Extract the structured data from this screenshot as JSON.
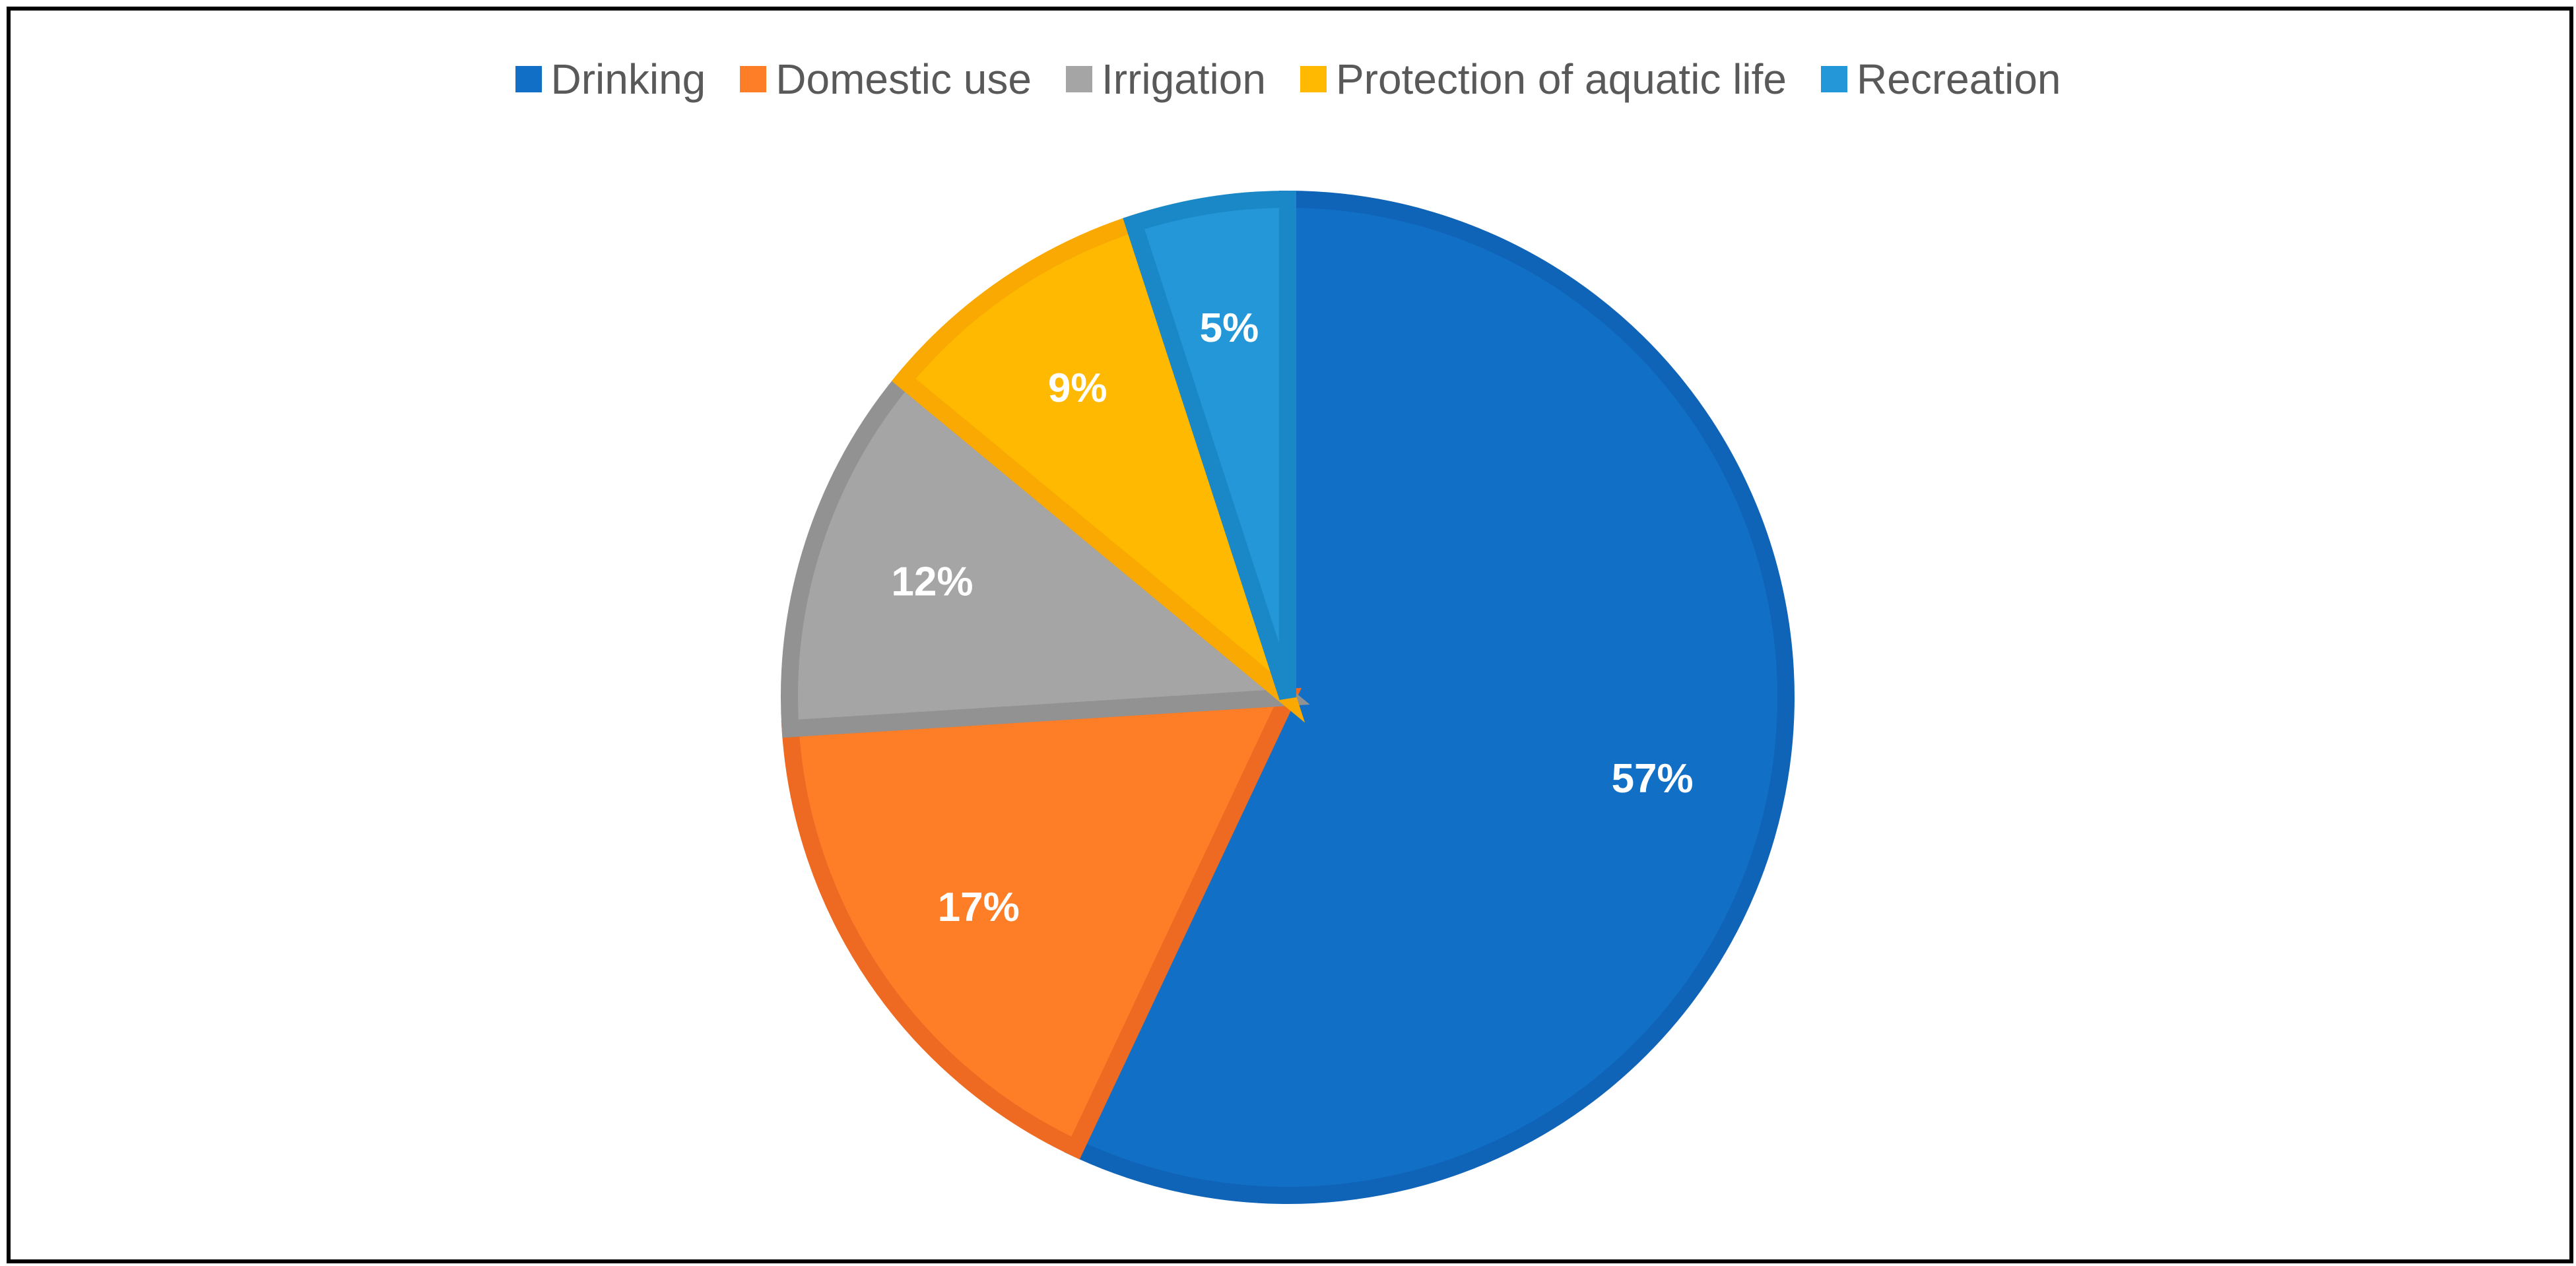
{
  "chart_data": {
    "type": "pie",
    "title": "",
    "legend_position": "top",
    "slices": [
      {
        "label": "Drinking",
        "value": 57,
        "data_label": "57%",
        "color": "#1170C6",
        "border": "#0F64B8"
      },
      {
        "label": "Domestic use",
        "value": 17,
        "data_label": "17%",
        "color": "#FD7E27",
        "border": "#EE6A22"
      },
      {
        "label": "Irrigation",
        "value": 12,
        "data_label": "12%",
        "color": "#A5A5A5",
        "border": "#929292"
      },
      {
        "label": "Protection of aquatic life",
        "value": 9,
        "data_label": "9%",
        "color": "#FEB900",
        "border": "#F9A902"
      },
      {
        "label": "Recreation",
        "value": 5,
        "data_label": "5%",
        "color": "#2397D8",
        "border": "#1A87C6"
      }
    ]
  }
}
